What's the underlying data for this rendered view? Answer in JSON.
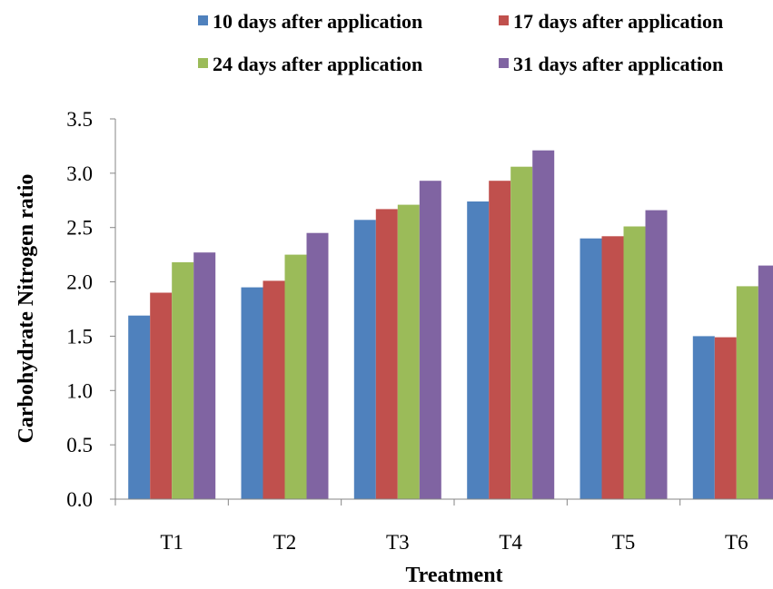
{
  "chart_data": {
    "type": "bar",
    "title": "",
    "xlabel": "Treatment",
    "ylabel": "Carbohydrate Nitrogen ratio",
    "categories": [
      "T1",
      "T2",
      "T3",
      "T4",
      "T5",
      "T6"
    ],
    "ylim": [
      0.0,
      3.5
    ],
    "yticks": [
      "0.0",
      "0.5",
      "1.0",
      "1.5",
      "2.0",
      "2.5",
      "3.0",
      "3.5"
    ],
    "grid": false,
    "legend_position": "top",
    "series": [
      {
        "name": "10 days after application",
        "color": "#4F81BD",
        "values": [
          1.69,
          1.95,
          2.57,
          2.74,
          2.4,
          1.5
        ]
      },
      {
        "name": "17 days after application",
        "color": "#C0504D",
        "values": [
          1.9,
          2.01,
          2.67,
          2.93,
          2.42,
          1.49
        ]
      },
      {
        "name": "24 days after application",
        "color": "#9BBB59",
        "values": [
          2.18,
          2.25,
          2.71,
          3.06,
          2.51,
          1.96
        ]
      },
      {
        "name": "31 days after application",
        "color": "#8064A2",
        "values": [
          2.27,
          2.45,
          2.93,
          3.21,
          2.66,
          2.15
        ]
      }
    ]
  }
}
